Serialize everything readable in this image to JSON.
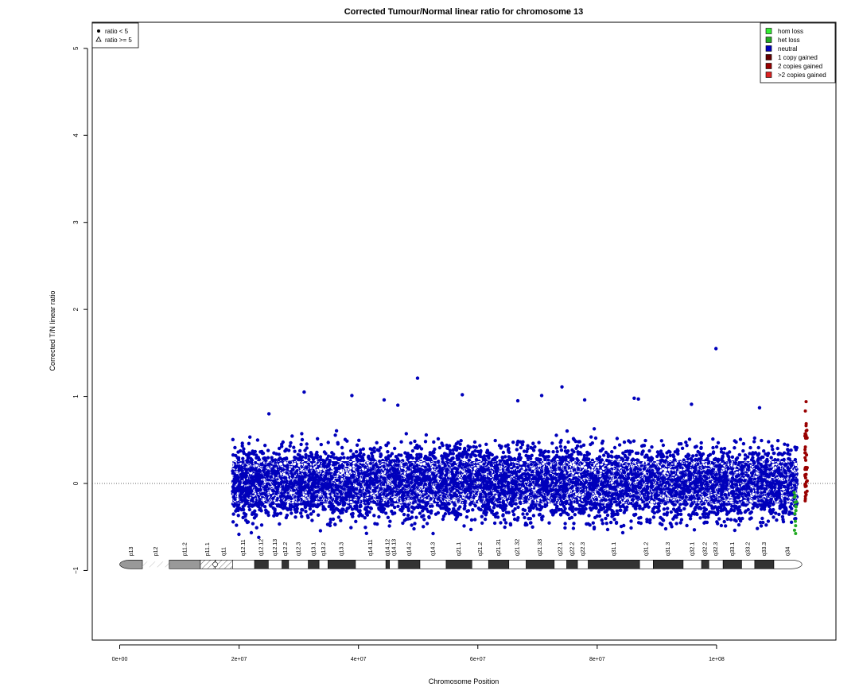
{
  "chart_data": {
    "type": "scatter",
    "title": "Corrected Tumour/Normal linear ratio for chromosome  13",
    "xlabel": "Chromosome Position",
    "ylabel": "Corrected T/N linear ratio",
    "xlim": [
      -4600000,
      120000000
    ],
    "ylim": [
      -1.8,
      5.3
    ],
    "x_ticks": [
      0,
      20000000,
      40000000,
      60000000,
      80000000,
      100000000
    ],
    "x_tick_labels": [
      "0e+00",
      "2e+07",
      "4e+07",
      "6e+07",
      "8e+07",
      "1e+08"
    ],
    "y_ticks": [
      -1,
      0,
      1,
      2,
      3,
      4,
      5
    ],
    "y_tick_labels": [
      "−1",
      "0",
      "1",
      "2",
      "3",
      "4",
      "5"
    ],
    "reference_line_y": 0,
    "grid": false,
    "neutral_cloud": {
      "x_start": 18900000,
      "x_end": 113500000,
      "center": 0.0,
      "spread": 0.27,
      "series": "neutral"
    },
    "outliers": [
      {
        "x": 23300000,
        "y": -0.62
      },
      {
        "x": 25000000,
        "y": 0.8
      },
      {
        "x": 30900000,
        "y": 1.05
      },
      {
        "x": 38900000,
        "y": 1.01
      },
      {
        "x": 44300000,
        "y": 0.96
      },
      {
        "x": 46600000,
        "y": 0.9
      },
      {
        "x": 49900000,
        "y": 1.21
      },
      {
        "x": 57400000,
        "y": 1.02
      },
      {
        "x": 66700000,
        "y": 0.95
      },
      {
        "x": 70700000,
        "y": 1.01
      },
      {
        "x": 74100000,
        "y": 1.11
      },
      {
        "x": 77900000,
        "y": 0.96
      },
      {
        "x": 86200000,
        "y": 0.98
      },
      {
        "x": 86900000,
        "y": 0.97
      },
      {
        "x": 95800000,
        "y": 0.91
      },
      {
        "x": 99900000,
        "y": 1.55
      },
      {
        "x": 107200000,
        "y": 0.87
      }
    ],
    "gained_points": {
      "series": "2 copies gained",
      "x": 115000000,
      "y_min": -0.2,
      "y_max": 0.94
    },
    "loss_points": {
      "series": "het loss",
      "x": 113200000,
      "y_min": -0.58,
      "y_max": -0.1
    },
    "legend_symbols": {
      "position": "top-left",
      "entries": [
        {
          "symbol": "dot",
          "label": "ratio < 5"
        },
        {
          "symbol": "triangle",
          "label": "ratio >= 5"
        }
      ]
    },
    "legend_series": {
      "position": "top-right",
      "entries": [
        {
          "label": "hom loss",
          "color": "#33ee33"
        },
        {
          "label": "het loss",
          "color": "#22aa22"
        },
        {
          "label": "neutral",
          "color": "#0000bb"
        },
        {
          "label": "1 copy gained",
          "color": "#660000"
        },
        {
          "label": "2 copies gained",
          "color": "#990000"
        },
        {
          "label": ">2 copies gained",
          "color": "#dd2222"
        }
      ]
    },
    "ideogram": {
      "y": -0.93,
      "bands": [
        {
          "name": "p13",
          "start": 0,
          "end": 3800000,
          "stain": "gpos50"
        },
        {
          "name": "p12",
          "start": 3800000,
          "end": 8300000,
          "stain": "stalk"
        },
        {
          "name": "p11.2",
          "start": 8300000,
          "end": 13500000,
          "stain": "gpos50"
        },
        {
          "name": "p11.1",
          "start": 13500000,
          "end": 16000000,
          "stain": "acen"
        },
        {
          "name": "q11",
          "start": 16000000,
          "end": 18900000,
          "stain": "acen"
        },
        {
          "name": "q12.11",
          "start": 18900000,
          "end": 22600000,
          "stain": "gneg"
        },
        {
          "name": "q12.12",
          "start": 22600000,
          "end": 24900000,
          "stain": "gpos"
        },
        {
          "name": "q12.13",
          "start": 24900000,
          "end": 27200000,
          "stain": "gneg"
        },
        {
          "name": "q12.2",
          "start": 27200000,
          "end": 28300000,
          "stain": "gpos"
        },
        {
          "name": "q12.3",
          "start": 28300000,
          "end": 31600000,
          "stain": "gneg"
        },
        {
          "name": "q13.1",
          "start": 31600000,
          "end": 33400000,
          "stain": "gpos"
        },
        {
          "name": "q13.2",
          "start": 33400000,
          "end": 34900000,
          "stain": "gneg"
        },
        {
          "name": "q13.3",
          "start": 34900000,
          "end": 39500000,
          "stain": "gpos"
        },
        {
          "name": "q14.11",
          "start": 39500000,
          "end": 44600000,
          "stain": "gneg"
        },
        {
          "name": "q14.12",
          "start": 44600000,
          "end": 45200000,
          "stain": "gpos"
        },
        {
          "name": "q14.13",
          "start": 45200000,
          "end": 46700000,
          "stain": "gneg"
        },
        {
          "name": "q14.2",
          "start": 46700000,
          "end": 50300000,
          "stain": "gpos"
        },
        {
          "name": "q14.3",
          "start": 50300000,
          "end": 54700000,
          "stain": "gneg"
        },
        {
          "name": "q21.1",
          "start": 54700000,
          "end": 59000000,
          "stain": "gpos"
        },
        {
          "name": "q21.2",
          "start": 59000000,
          "end": 61800000,
          "stain": "gneg"
        },
        {
          "name": "q21.31",
          "start": 61800000,
          "end": 65200000,
          "stain": "gpos"
        },
        {
          "name": "q21.32",
          "start": 65200000,
          "end": 68100000,
          "stain": "gneg"
        },
        {
          "name": "q21.33",
          "start": 68100000,
          "end": 72800000,
          "stain": "gpos"
        },
        {
          "name": "q22.1",
          "start": 72800000,
          "end": 74900000,
          "stain": "gneg"
        },
        {
          "name": "q22.2",
          "start": 74900000,
          "end": 76700000,
          "stain": "gpos"
        },
        {
          "name": "q22.3",
          "start": 76700000,
          "end": 78500000,
          "stain": "gneg"
        },
        {
          "name": "q31.1",
          "start": 78500000,
          "end": 87100000,
          "stain": "gpos"
        },
        {
          "name": "q31.2",
          "start": 87100000,
          "end": 89400000,
          "stain": "gneg"
        },
        {
          "name": "q31.3",
          "start": 89400000,
          "end": 94400000,
          "stain": "gpos"
        },
        {
          "name": "q32.1",
          "start": 94400000,
          "end": 97500000,
          "stain": "gneg"
        },
        {
          "name": "q32.2",
          "start": 97500000,
          "end": 98700000,
          "stain": "gpos"
        },
        {
          "name": "q32.3",
          "start": 98700000,
          "end": 101100000,
          "stain": "gneg"
        },
        {
          "name": "q33.1",
          "start": 101100000,
          "end": 104200000,
          "stain": "gpos"
        },
        {
          "name": "q33.2",
          "start": 104200000,
          "end": 106400000,
          "stain": "gneg"
        },
        {
          "name": "q33.3",
          "start": 106400000,
          "end": 109600000,
          "stain": "gpos"
        },
        {
          "name": "q34",
          "start": 109600000,
          "end": 114300000,
          "stain": "gneg"
        }
      ]
    }
  }
}
